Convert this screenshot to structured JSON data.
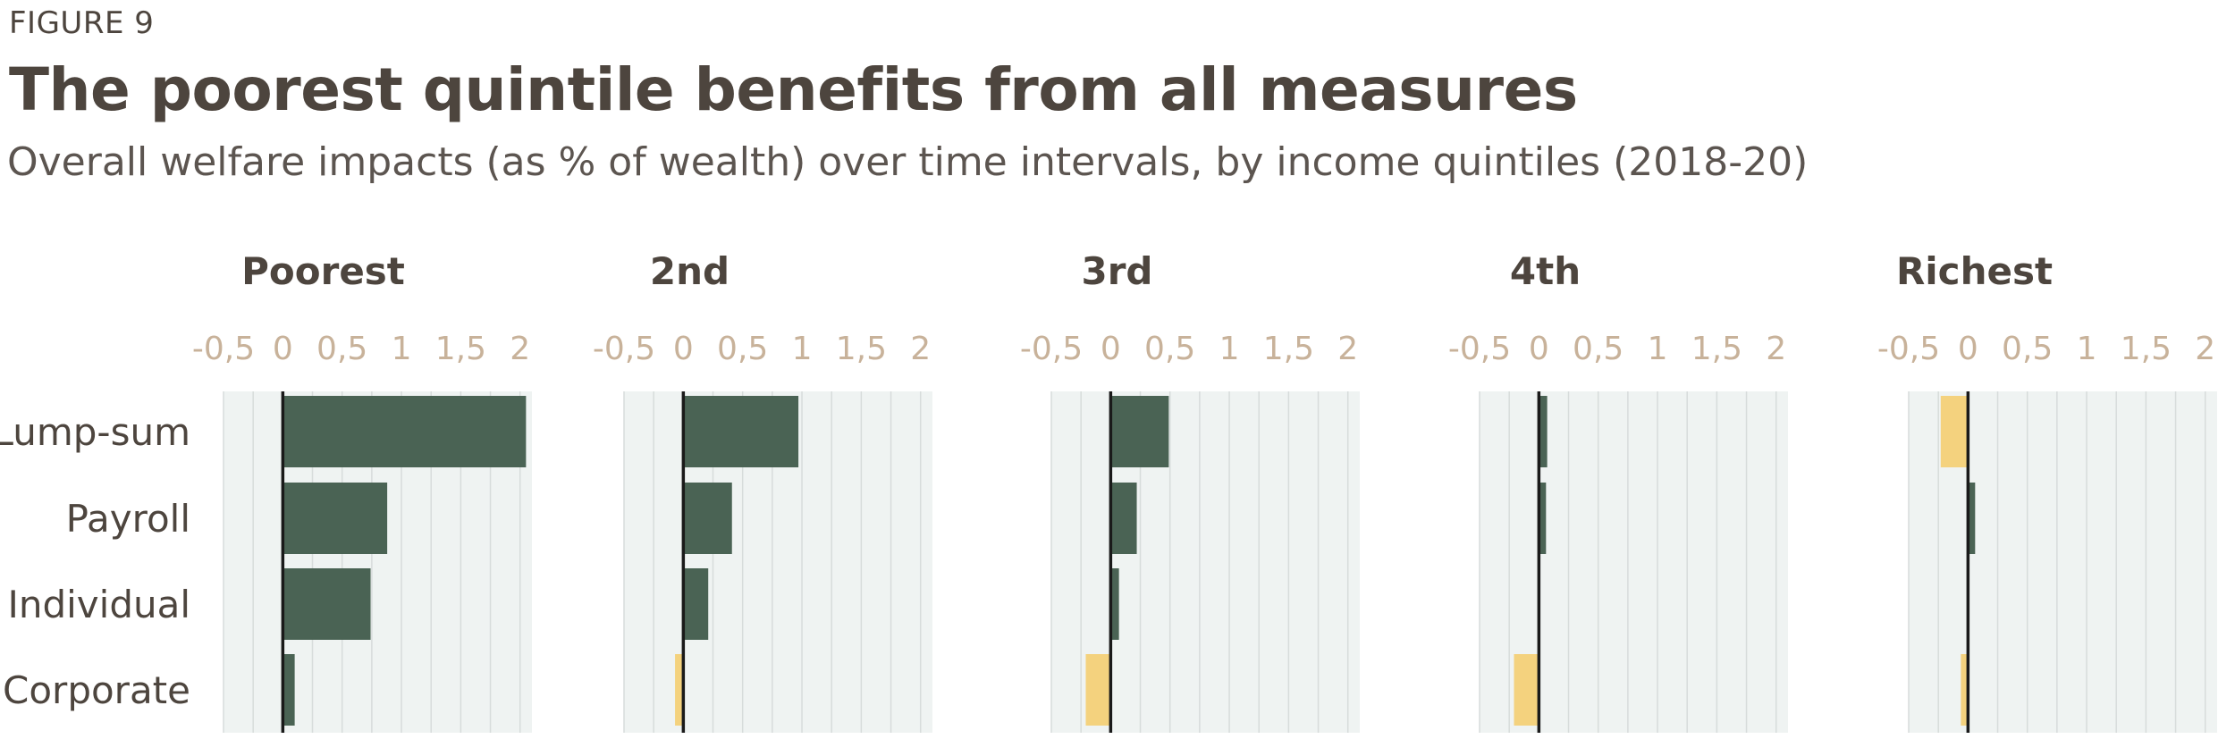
{
  "figure_label": "FIGURE 9",
  "title": "The poorest quintile benefits from all measures",
  "subtitle": "Overall welfare impacts (as % of wealth) over time intervals, by income quintiles (2018-20)",
  "colors": {
    "positive": "#4a6354",
    "negative": "#f4d27e",
    "panel_bg": "#eff3f2",
    "grid": "#d7dcdb",
    "zero_line": "#1a1a1a",
    "tick_label": "#c8b29a",
    "text": "#4d453e"
  },
  "chart_data": {
    "type": "bar",
    "orientation": "horizontal",
    "categories": [
      "Lump-sum",
      "Payroll",
      "Individual",
      "Corporate"
    ],
    "xlim": [
      -0.5,
      2.1
    ],
    "x_ticks": [
      "-0,5",
      "0",
      "0,5",
      "1",
      "1,5",
      "2"
    ],
    "grid": true,
    "panels": [
      {
        "name": "Poorest",
        "values": [
          2.05,
          0.88,
          0.74,
          0.1
        ]
      },
      {
        "name": "2nd",
        "values": [
          0.97,
          0.41,
          0.21,
          -0.07
        ]
      },
      {
        "name": "3rd",
        "values": [
          0.49,
          0.22,
          0.07,
          -0.21
        ]
      },
      {
        "name": "4th",
        "values": [
          0.07,
          0.06,
          0.0,
          -0.21
        ]
      },
      {
        "name": "Richest",
        "values": [
          -0.23,
          0.06,
          0.0,
          -0.06
        ]
      }
    ]
  }
}
